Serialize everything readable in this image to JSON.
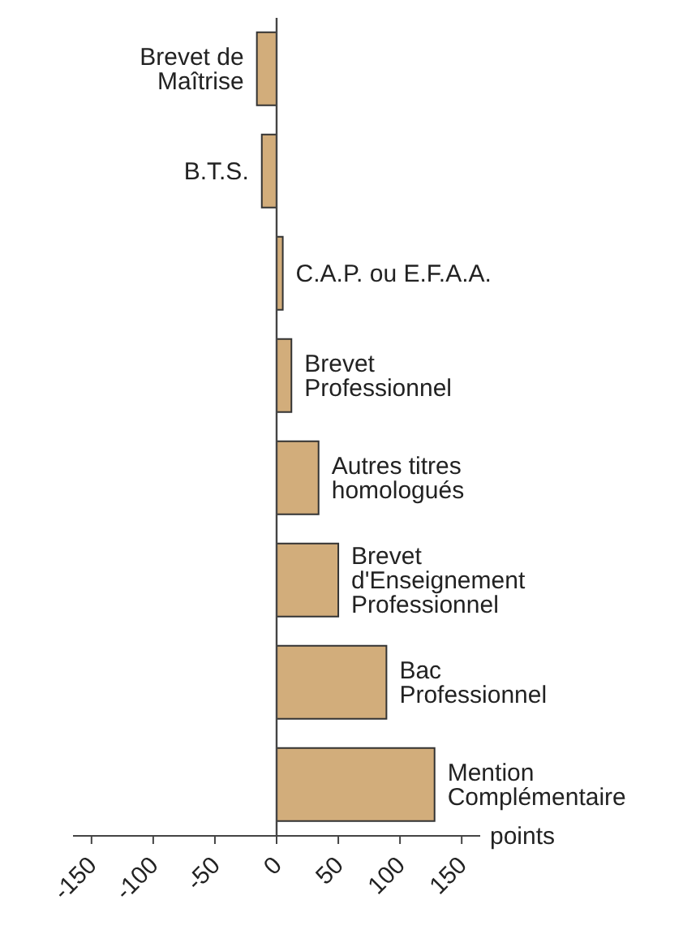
{
  "chart_data": {
    "type": "bar",
    "orientation": "horizontal",
    "xlabel": "points",
    "categories": [
      "Brevet de\nMaîtrise",
      "B.T.S.",
      "C.A.P. ou E.F.A.A.",
      "Brevet\nProfessionnel",
      "Autres titres\nhomologués",
      "Brevet\nd'Enseignement\nProfessionnel",
      "Bac\nProfessionnel",
      "Mention\nComplémentaire"
    ],
    "values": [
      -16,
      -12,
      5,
      12,
      34,
      50,
      89,
      128
    ],
    "color": "#d2ad7b",
    "xlim": [
      -165,
      165
    ],
    "xticks": [
      -150,
      -100,
      -50,
      0,
      50,
      100,
      150
    ],
    "grid": false,
    "legend": false
  }
}
